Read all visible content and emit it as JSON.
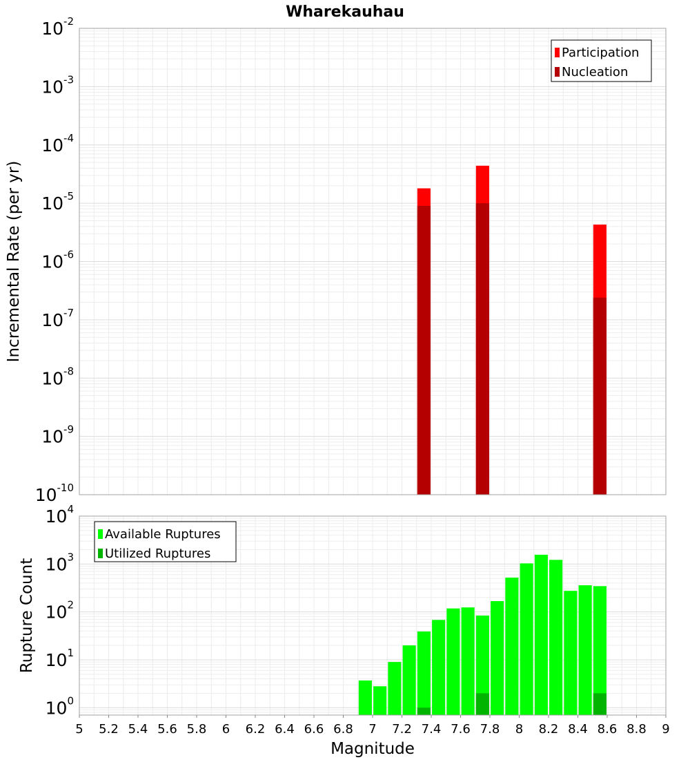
{
  "chart_data": [
    {
      "type": "bar",
      "title": "Wharekauhau",
      "xlabel": "",
      "ylabel": "Incremental Rate (per yr)",
      "yscale": "log",
      "ylim": [
        1e-10,
        0.01
      ],
      "xlim": [
        5,
        9
      ],
      "y_ticks": [
        {
          "base": "10",
          "exp": "-2"
        },
        {
          "base": "10",
          "exp": "-3"
        },
        {
          "base": "10",
          "exp": "-4"
        },
        {
          "base": "10",
          "exp": "-5"
        },
        {
          "base": "10",
          "exp": "-6"
        },
        {
          "base": "10",
          "exp": "-7"
        },
        {
          "base": "10",
          "exp": "-8"
        },
        {
          "base": "10",
          "exp": "-9"
        },
        {
          "base": "10",
          "exp": "-10"
        }
      ],
      "legend_position": "top-right",
      "grid": true,
      "series": [
        {
          "name": "Participation",
          "color": "#ff0000",
          "x": [
            7.35,
            7.75,
            8.55
          ],
          "values": [
            1.8e-05,
            4.4e-05,
            4.3e-06
          ]
        },
        {
          "name": "Nucleation",
          "color": "#b40000",
          "x": [
            7.35,
            7.75,
            8.55
          ],
          "values": [
            9e-06,
            1e-05,
            2.4e-07
          ]
        }
      ]
    },
    {
      "type": "bar",
      "title": "",
      "xlabel": "Magnitude",
      "ylabel": "Rupture Count",
      "yscale": "log",
      "ylim": [
        0.7,
        10000
      ],
      "xlim": [
        5,
        9
      ],
      "x_ticks": [
        "5",
        "5.2",
        "5.4",
        "5.6",
        "5.8",
        "6",
        "6.2",
        "6.4",
        "6.6",
        "6.8",
        "7",
        "7.2",
        "7.4",
        "7.6",
        "7.8",
        "8",
        "8.2",
        "8.4",
        "8.6",
        "8.8",
        "9"
      ],
      "y_ticks": [
        {
          "base": "10",
          "exp": "4"
        },
        {
          "base": "10",
          "exp": "3"
        },
        {
          "base": "10",
          "exp": "2"
        },
        {
          "base": "10",
          "exp": "1"
        },
        {
          "base": "10",
          "exp": "0"
        }
      ],
      "legend_position": "top-left",
      "grid": true,
      "series": [
        {
          "name": "Available Ruptures",
          "color": "#00ff00",
          "x": [
            6.95,
            7.05,
            7.15,
            7.25,
            7.35,
            7.45,
            7.55,
            7.65,
            7.75,
            7.85,
            7.95,
            8.05,
            8.15,
            8.25,
            8.35,
            8.45,
            8.55
          ],
          "values": [
            3.7,
            2.8,
            9,
            20,
            39,
            68,
            118,
            124,
            84,
            168,
            520,
            1030,
            1560,
            1220,
            275,
            360,
            345
          ]
        },
        {
          "name": "Utilized Ruptures",
          "color": "#00b400",
          "x": [
            7.35,
            7.75,
            8.55
          ],
          "values": [
            1,
            2,
            2
          ]
        }
      ]
    }
  ]
}
